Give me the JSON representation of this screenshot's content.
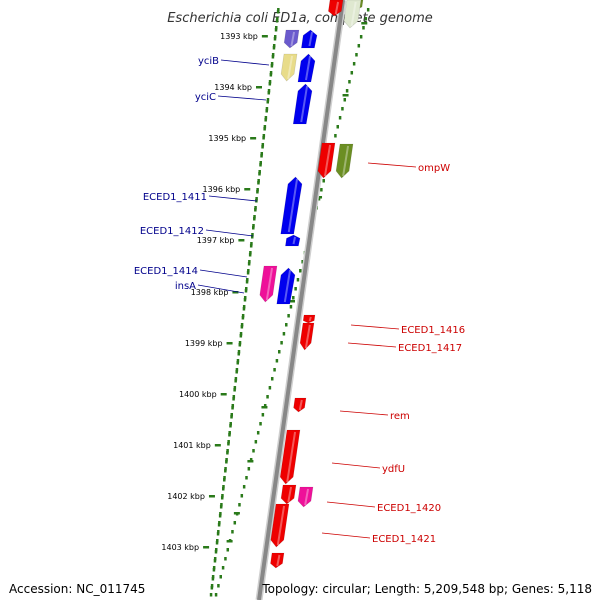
{
  "title": "Escherichia coli ED1a, complete genome",
  "accession": "Accession: NC_011745",
  "summary": "Topology: circular; Length: 5,209,548 bp; Genes: 5,118",
  "ticks": [
    "1393 kbp",
    "1394 kbp",
    "1395 kbp",
    "1396 kbp",
    "1397 kbp",
    "1398 kbp",
    "1399 kbp",
    "1400 kbp",
    "1401 kbp",
    "1402 kbp",
    "1403 kbp"
  ],
  "colors": {
    "backbone": "#888888",
    "tick": "#2a7a1a",
    "reverse_gene": "#0000ee",
    "forward_gene": "#ee0000",
    "pink_gene": "#ee1199",
    "olive_gene": "#6b8e23",
    "purple_gene": "#6a5acd",
    "tan_gene": "#e8dc8a",
    "label_blue": "#00008b",
    "label_red": "#cc0000"
  },
  "left_labels": [
    "yciB",
    "yciC",
    "ECED1_1411",
    "ECED1_1412",
    "ECED1_1414",
    "insA"
  ],
  "right_labels": [
    "ompW",
    "ECED1_1416",
    "ECED1_1417",
    "rem",
    "ydfU",
    "ECED1_1420",
    "ECED1_1421"
  ]
}
